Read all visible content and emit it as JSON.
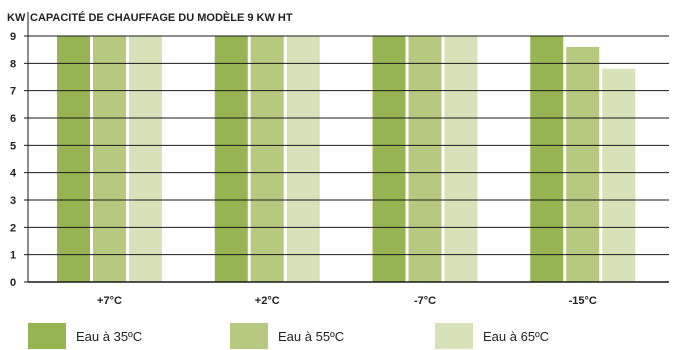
{
  "chart_data": {
    "type": "bar",
    "title": "CAPACITÉ DE CHAUFFAGE DU MODÈLE 9 KW HT",
    "ylabel": "KW",
    "xlabel": "",
    "ylim": [
      0,
      9
    ],
    "yticks": [
      "0",
      "1",
      "2",
      "3",
      "4",
      "5",
      "6",
      "7",
      "8",
      "9"
    ],
    "categories": [
      "+7°C",
      "+2°C",
      "-7°C",
      "-15°C"
    ],
    "series": [
      {
        "name": "Eau à 35ºC",
        "color": "#97b453",
        "values": [
          9,
          9,
          9,
          9
        ]
      },
      {
        "name": "Eau à 55ºC",
        "color": "#b6c97f",
        "values": [
          9,
          9,
          9,
          8.6
        ]
      },
      {
        "name": "Eau à 65ºC",
        "color": "#d8e2b9",
        "values": [
          9,
          9,
          9,
          7.8
        ]
      }
    ],
    "grid": true,
    "legend": "bottom"
  }
}
